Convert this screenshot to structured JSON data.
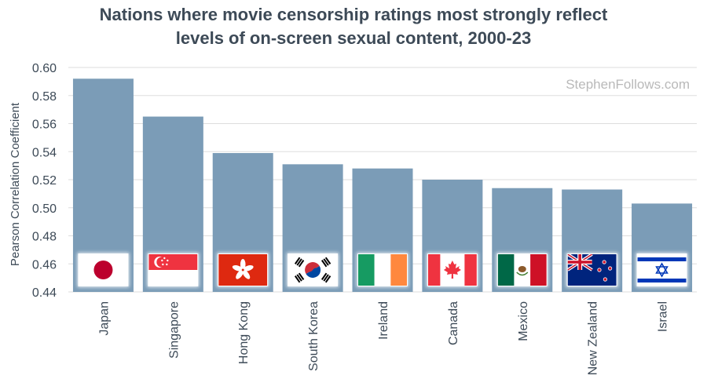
{
  "chart_data": {
    "type": "bar",
    "title_lines": [
      "Nations where movie censorship ratings most strongly reflect",
      "levels of on-screen sexual content, 2000-23"
    ],
    "watermark": "StephenFollows.com",
    "ylabel": "Pearson Correlation Coefficient",
    "xlabel": "",
    "ylim": [
      0.44,
      0.6
    ],
    "yticks": [
      0.44,
      0.46,
      0.48,
      0.5,
      0.52,
      0.54,
      0.56,
      0.58,
      0.6
    ],
    "ytick_labels": [
      "0.44",
      "0.46",
      "0.48",
      "0.50",
      "0.52",
      "0.54",
      "0.56",
      "0.58",
      "0.60"
    ],
    "grid": true,
    "categories": [
      "Japan",
      "Singapore",
      "Hong Kong",
      "South Korea",
      "Ireland",
      "Canada",
      "Mexico",
      "New Zealand",
      "Israel"
    ],
    "values": [
      0.592,
      0.565,
      0.539,
      0.531,
      0.528,
      0.52,
      0.514,
      0.513,
      0.503
    ],
    "flag_icons": [
      "japan-flag-icon",
      "singapore-flag-icon",
      "hong-kong-flag-icon",
      "south-korea-flag-icon",
      "ireland-flag-icon",
      "canada-flag-icon",
      "mexico-flag-icon",
      "new-zealand-flag-icon",
      "israel-flag-icon"
    ],
    "colors": {
      "bar": "#7b9cb7",
      "grid": "#dddddd",
      "text": "#3d4a57",
      "watermark": "#b9b9b9"
    }
  }
}
